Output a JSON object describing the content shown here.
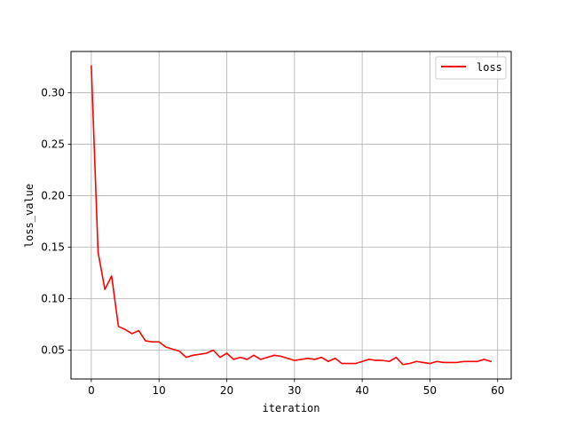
{
  "chart_data": {
    "type": "line",
    "title": "",
    "xlabel": "iteration",
    "ylabel": "loss_value",
    "xlim": [
      -3,
      62
    ],
    "ylim": [
      0.022,
      0.34
    ],
    "x_ticks": [
      0,
      10,
      20,
      30,
      40,
      50,
      60
    ],
    "y_ticks": [
      0.05,
      0.1,
      0.15,
      0.2,
      0.25,
      0.3
    ],
    "x_tick_labels": [
      "0",
      "10",
      "20",
      "30",
      "40",
      "50",
      "60"
    ],
    "y_tick_labels": [
      "0.05",
      "0.10",
      "0.15",
      "0.20",
      "0.25",
      "0.30"
    ],
    "grid": true,
    "legend_position": "top-right",
    "series": [
      {
        "name": "loss",
        "color": "#ff0000",
        "x": [
          0,
          1,
          2,
          3,
          4,
          5,
          6,
          7,
          8,
          9,
          10,
          11,
          12,
          13,
          14,
          15,
          16,
          17,
          18,
          19,
          20,
          21,
          22,
          23,
          24,
          25,
          26,
          27,
          28,
          29,
          30,
          31,
          32,
          33,
          34,
          35,
          36,
          37,
          38,
          39,
          40,
          41,
          42,
          43,
          44,
          45,
          46,
          47,
          48,
          49,
          50,
          51,
          52,
          53,
          54,
          55,
          56,
          57,
          58,
          59
        ],
        "values": [
          0.326,
          0.145,
          0.109,
          0.122,
          0.073,
          0.07,
          0.066,
          0.069,
          0.059,
          0.058,
          0.058,
          0.053,
          0.051,
          0.049,
          0.043,
          0.045,
          0.046,
          0.047,
          0.05,
          0.043,
          0.047,
          0.041,
          0.043,
          0.041,
          0.045,
          0.041,
          0.043,
          0.045,
          0.044,
          0.042,
          0.04,
          0.041,
          0.042,
          0.041,
          0.043,
          0.039,
          0.042,
          0.037,
          0.037,
          0.037,
          0.039,
          0.041,
          0.04,
          0.04,
          0.039,
          0.043,
          0.036,
          0.037,
          0.039,
          0.038,
          0.037,
          0.039,
          0.038,
          0.038,
          0.038,
          0.039,
          0.039,
          0.039,
          0.041,
          0.039
        ]
      }
    ]
  }
}
